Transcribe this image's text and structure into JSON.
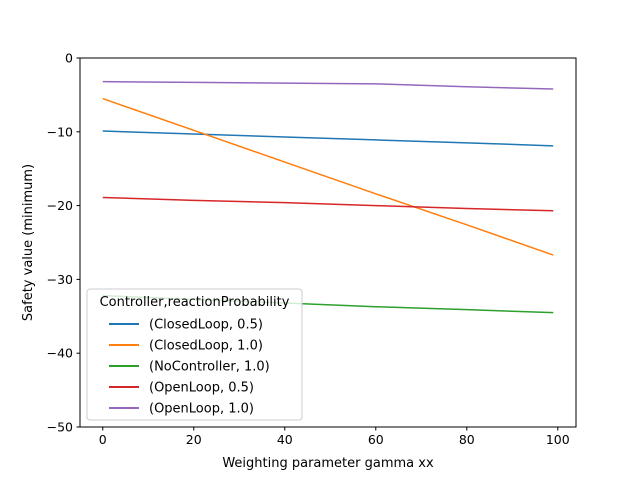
{
  "chart_data": {
    "type": "line",
    "title": "",
    "xlabel": "Weighting parameter gamma xx",
    "ylabel": "Safety value (minimum)",
    "xlim": [
      -5,
      104
    ],
    "ylim": [
      -50,
      0
    ],
    "xticks": [
      0,
      20,
      40,
      60,
      80,
      100
    ],
    "yticks": [
      0,
      -10,
      -20,
      -30,
      -40,
      -50
    ],
    "xtick_labels": [
      "0",
      "20",
      "40",
      "60",
      "80",
      "100"
    ],
    "ytick_labels": [
      "0",
      "−10",
      "−20",
      "−30",
      "−40",
      "−50"
    ],
    "grid": false,
    "legend": {
      "title": "Controller,reactionProbability",
      "placement": "lower-left"
    },
    "series": [
      {
        "name": "(ClosedLoop, 0.5)",
        "color": "#1f77b4",
        "x": [
          0,
          20,
          40,
          60,
          80,
          99
        ],
        "y": [
          -9.9,
          -10.3,
          -10.7,
          -11.1,
          -11.5,
          -11.9
        ]
      },
      {
        "name": "(ClosedLoop, 1.0)",
        "color": "#ff7f0e",
        "x": [
          0,
          20,
          40,
          60,
          80,
          99
        ],
        "y": [
          -5.5,
          -9.8,
          -14.1,
          -18.4,
          -22.6,
          -26.7
        ]
      },
      {
        "name": "(NoController, 1.0)",
        "color": "#2ca02c",
        "x": [
          0,
          20,
          40,
          60,
          80,
          99
        ],
        "y": [
          -32.2,
          -32.7,
          -33.2,
          -33.7,
          -34.1,
          -34.5
        ]
      },
      {
        "name": "(OpenLoop, 0.5)",
        "color": "#d62728",
        "x": [
          0,
          20,
          40,
          60,
          80,
          99
        ],
        "y": [
          -18.9,
          -19.3,
          -19.6,
          -20.0,
          -20.4,
          -20.7
        ]
      },
      {
        "name": "(OpenLoop, 1.0)",
        "color": "#9467bd",
        "x": [
          0,
          20,
          40,
          60,
          80,
          99
        ],
        "y": [
          -3.2,
          -3.3,
          -3.4,
          -3.5,
          -3.9,
          -4.2
        ]
      }
    ]
  }
}
